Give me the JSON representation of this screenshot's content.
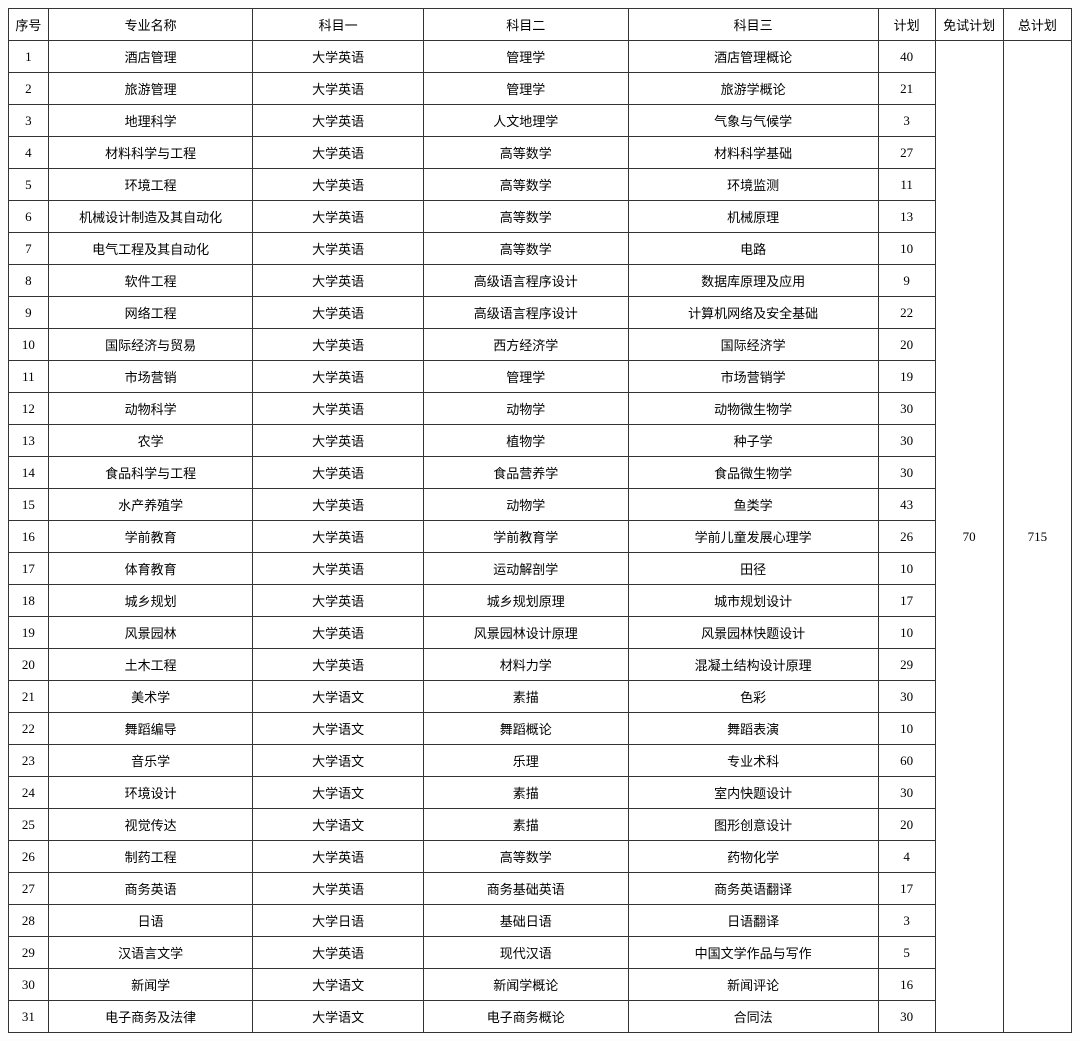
{
  "table": {
    "headers": {
      "seq": "序号",
      "name": "专业名称",
      "sub1": "科目一",
      "sub2": "科目二",
      "sub3": "科目三",
      "plan": "计划",
      "exempt": "免试计划",
      "total": "总计划"
    },
    "exempt_value": "70",
    "total_value": "715",
    "rows": [
      {
        "seq": "1",
        "name": "酒店管理",
        "sub1": "大学英语",
        "sub2": "管理学",
        "sub3": "酒店管理概论",
        "plan": "40"
      },
      {
        "seq": "2",
        "name": "旅游管理",
        "sub1": "大学英语",
        "sub2": "管理学",
        "sub3": "旅游学概论",
        "plan": "21"
      },
      {
        "seq": "3",
        "name": "地理科学",
        "sub1": "大学英语",
        "sub2": "人文地理学",
        "sub3": "气象与气候学",
        "plan": "3"
      },
      {
        "seq": "4",
        "name": "材料科学与工程",
        "sub1": "大学英语",
        "sub2": "高等数学",
        "sub3": "材料科学基础",
        "plan": "27"
      },
      {
        "seq": "5",
        "name": "环境工程",
        "sub1": "大学英语",
        "sub2": "高等数学",
        "sub3": "环境监测",
        "plan": "11"
      },
      {
        "seq": "6",
        "name": "机械设计制造及其自动化",
        "sub1": "大学英语",
        "sub2": "高等数学",
        "sub3": "机械原理",
        "plan": "13"
      },
      {
        "seq": "7",
        "name": "电气工程及其自动化",
        "sub1": "大学英语",
        "sub2": "高等数学",
        "sub3": "电路",
        "plan": "10"
      },
      {
        "seq": "8",
        "name": "软件工程",
        "sub1": "大学英语",
        "sub2": "高级语言程序设计",
        "sub3": "数据库原理及应用",
        "plan": "9"
      },
      {
        "seq": "9",
        "name": "网络工程",
        "sub1": "大学英语",
        "sub2": "高级语言程序设计",
        "sub3": "计算机网络及安全基础",
        "plan": "22"
      },
      {
        "seq": "10",
        "name": "国际经济与贸易",
        "sub1": "大学英语",
        "sub2": "西方经济学",
        "sub3": "国际经济学",
        "plan": "20"
      },
      {
        "seq": "11",
        "name": "市场营销",
        "sub1": "大学英语",
        "sub2": "管理学",
        "sub3": "市场营销学",
        "plan": "19"
      },
      {
        "seq": "12",
        "name": "动物科学",
        "sub1": "大学英语",
        "sub2": "动物学",
        "sub3": "动物微生物学",
        "plan": "30"
      },
      {
        "seq": "13",
        "name": "农学",
        "sub1": "大学英语",
        "sub2": "植物学",
        "sub3": "种子学",
        "plan": "30"
      },
      {
        "seq": "14",
        "name": "食品科学与工程",
        "sub1": "大学英语",
        "sub2": "食品营养学",
        "sub3": "食品微生物学",
        "plan": "30"
      },
      {
        "seq": "15",
        "name": "水产养殖学",
        "sub1": "大学英语",
        "sub2": "动物学",
        "sub3": "鱼类学",
        "plan": "43"
      },
      {
        "seq": "16",
        "name": "学前教育",
        "sub1": "大学英语",
        "sub2": "学前教育学",
        "sub3": "学前儿童发展心理学",
        "plan": "26"
      },
      {
        "seq": "17",
        "name": "体育教育",
        "sub1": "大学英语",
        "sub2": "运动解剖学",
        "sub3": "田径",
        "plan": "10"
      },
      {
        "seq": "18",
        "name": "城乡规划",
        "sub1": "大学英语",
        "sub2": "城乡规划原理",
        "sub3": "城市规划设计",
        "plan": "17"
      },
      {
        "seq": "19",
        "name": "风景园林",
        "sub1": "大学英语",
        "sub2": "风景园林设计原理",
        "sub3": "风景园林快题设计",
        "plan": "10"
      },
      {
        "seq": "20",
        "name": "土木工程",
        "sub1": "大学英语",
        "sub2": "材料力学",
        "sub3": "混凝土结构设计原理",
        "plan": "29"
      },
      {
        "seq": "21",
        "name": "美术学",
        "sub1": "大学语文",
        "sub2": "素描",
        "sub3": "色彩",
        "plan": "30"
      },
      {
        "seq": "22",
        "name": "舞蹈编导",
        "sub1": "大学语文",
        "sub2": "舞蹈概论",
        "sub3": "舞蹈表演",
        "plan": "10"
      },
      {
        "seq": "23",
        "name": "音乐学",
        "sub1": "大学语文",
        "sub2": "乐理",
        "sub3": "专业术科",
        "plan": "60"
      },
      {
        "seq": "24",
        "name": "环境设计",
        "sub1": "大学语文",
        "sub2": "素描",
        "sub3": "室内快题设计",
        "plan": "30"
      },
      {
        "seq": "25",
        "name": "视觉传达",
        "sub1": "大学语文",
        "sub2": "素描",
        "sub3": "图形创意设计",
        "plan": "20"
      },
      {
        "seq": "26",
        "name": "制药工程",
        "sub1": "大学英语",
        "sub2": "高等数学",
        "sub3": "药物化学",
        "plan": "4"
      },
      {
        "seq": "27",
        "name": "商务英语",
        "sub1": "大学英语",
        "sub2": "商务基础英语",
        "sub3": "商务英语翻译",
        "plan": "17"
      },
      {
        "seq": "28",
        "name": "日语",
        "sub1": "大学日语",
        "sub2": "基础日语",
        "sub3": "日语翻译",
        "plan": "3"
      },
      {
        "seq": "29",
        "name": "汉语言文学",
        "sub1": "大学英语",
        "sub2": "现代汉语",
        "sub3": "中国文学作品与写作",
        "plan": "5"
      },
      {
        "seq": "30",
        "name": "新闻学",
        "sub1": "大学语文",
        "sub2": "新闻学概论",
        "sub3": "新闻评论",
        "plan": "16"
      },
      {
        "seq": "31",
        "name": "电子商务及法律",
        "sub1": "大学语文",
        "sub2": "电子商务概论",
        "sub3": "合同法",
        "plan": "30"
      }
    ]
  }
}
